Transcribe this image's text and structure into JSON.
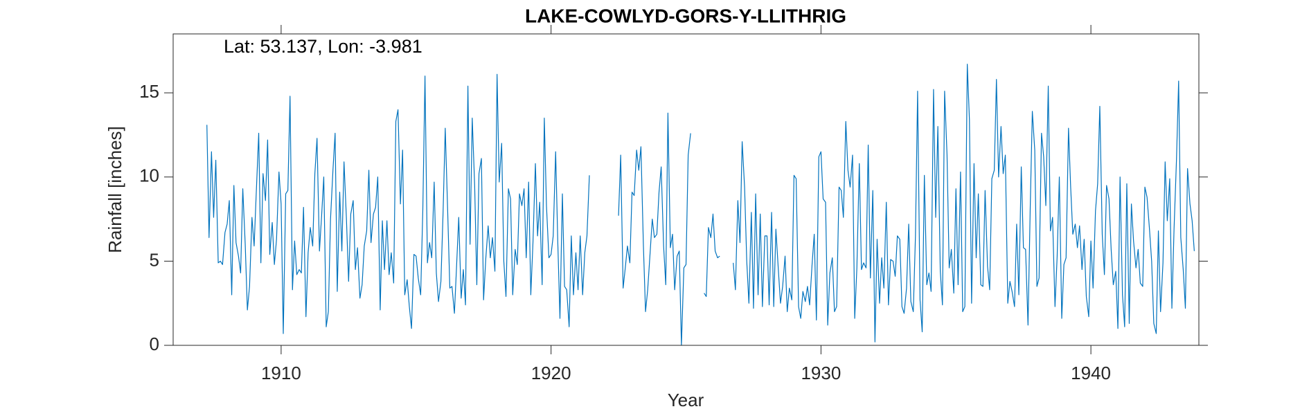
{
  "chart_data": {
    "type": "line",
    "title": "LAKE-COWLYD-GORS-Y-LLITHRIG",
    "annotation": "Lat: 53.137, Lon: -3.981",
    "xlabel": "Year",
    "ylabel": "Rainfall [inches]",
    "xlim": [
      1906,
      1944
    ],
    "ylim": [
      0,
      18.5
    ],
    "xticks": [
      1910,
      1920,
      1930,
      1940
    ],
    "yticks": [
      0,
      5,
      10,
      15
    ],
    "grid": false,
    "x": [
      1907.25,
      1907.33,
      1907.42,
      1907.5,
      1907.58,
      1907.67,
      1907.75,
      1907.83,
      1907.92,
      1908.0,
      1908.08,
      1908.17,
      1908.25,
      1908.33,
      1908.42,
      1908.5,
      1908.58,
      1908.67,
      1908.75,
      1908.83,
      1908.92,
      1909.0,
      1909.08,
      1909.17,
      1909.25,
      1909.33,
      1909.42,
      1909.5,
      1909.58,
      1909.67,
      1909.75,
      1909.83,
      1909.92,
      1910.0,
      1910.08,
      1910.17,
      1910.25,
      1910.33,
      1910.42,
      1910.5,
      1910.58,
      1910.67,
      1910.75,
      1910.83,
      1910.92,
      1911.0,
      1911.08,
      1911.17,
      1911.25,
      1911.33,
      1911.42,
      1911.5,
      1911.58,
      1911.67,
      1911.75,
      1911.83,
      1911.92,
      1912.0,
      1912.08,
      1912.17,
      1912.25,
      1912.33,
      1912.42,
      1912.5,
      1912.58,
      1912.67,
      1912.75,
      1912.83,
      1912.92,
      1913.0,
      1913.08,
      1913.17,
      1913.25,
      1913.33,
      1913.42,
      1913.5,
      1913.58,
      1913.67,
      1913.75,
      1913.83,
      1913.92,
      1914.0,
      1914.08,
      1914.17,
      1914.25,
      1914.33,
      1914.42,
      1914.5,
      1914.58,
      1914.67,
      1914.75,
      1914.83,
      1914.92,
      1915.0,
      1915.08,
      1915.17,
      1915.25,
      1915.33,
      1915.42,
      1915.5,
      1915.58,
      1915.67,
      1915.75,
      1915.83,
      1915.92,
      1916.0,
      1916.08,
      1916.17,
      1916.25,
      1916.33,
      1916.42,
      1916.5,
      1916.58,
      1916.67,
      1916.75,
      1916.83,
      1916.92,
      1917.0,
      1917.08,
      1917.17,
      1917.25,
      1917.33,
      1917.42,
      1917.5,
      1917.58,
      1917.67,
      1917.75,
      1917.83,
      1917.92,
      1918.0,
      1918.08,
      1918.17,
      1918.25,
      1918.33,
      1918.42,
      1918.5,
      1918.58,
      1918.67,
      1918.75,
      1918.83,
      1918.92,
      1919.0,
      1919.08,
      1919.17,
      1919.25,
      1919.33,
      1919.42,
      1919.5,
      1919.58,
      1919.67,
      1919.75,
      1919.83,
      1919.92,
      1920.0,
      1920.08,
      1920.17,
      1920.25,
      1920.33,
      1920.42,
      1920.5,
      1920.58,
      1920.67,
      1920.75,
      1920.83,
      1920.92,
      1921.0,
      1921.08,
      1921.17,
      1921.25,
      1921.33,
      1921.42,
      1921.5,
      1921.58,
      1921.67,
      1921.75,
      1921.83,
      1921.92,
      1922.0,
      1922.08,
      1922.17,
      1922.25,
      1922.33,
      1922.42,
      1922.5,
      1922.58,
      1922.67,
      1922.75,
      1922.83,
      1922.92,
      1923.0,
      1923.08,
      1923.17,
      1923.25,
      1923.33,
      1923.42,
      1923.5,
      1923.58,
      1923.67,
      1923.75,
      1923.83,
      1923.92,
      1924.0,
      1924.08,
      1924.17,
      1924.25,
      1924.33,
      1924.42,
      1924.5,
      1924.58,
      1924.67,
      1924.75,
      1924.83,
      1924.92,
      1925.0,
      1925.08,
      1925.17,
      1925.25,
      1925.33,
      1925.42,
      1925.5,
      1925.58,
      1925.67,
      1925.75,
      1925.83,
      1925.92,
      1926.0,
      1926.08,
      1926.17,
      1926.25,
      1926.33,
      1926.42,
      1926.5,
      1926.58,
      1926.67,
      1926.75,
      1926.83,
      1926.92,
      1927.0,
      1927.08,
      1927.17,
      1927.25,
      1927.33,
      1927.42,
      1927.5,
      1927.58,
      1927.67,
      1927.75,
      1927.83,
      1927.92,
      1928.0,
      1928.08,
      1928.17,
      1928.25,
      1928.33,
      1928.42,
      1928.5,
      1928.58,
      1928.67,
      1928.75,
      1928.83,
      1928.92,
      1929.0,
      1929.08,
      1929.17,
      1929.25,
      1929.33,
      1929.42,
      1929.5,
      1929.58,
      1929.67,
      1929.75,
      1929.83,
      1929.92,
      1930.0,
      1930.08,
      1930.17,
      1930.25,
      1930.33,
      1930.42,
      1930.5,
      1930.58,
      1930.67,
      1930.75,
      1930.83,
      1930.92,
      1931.0,
      1931.08,
      1931.17,
      1931.25,
      1931.33,
      1931.42,
      1931.5,
      1931.58,
      1931.67,
      1931.75,
      1931.83,
      1931.92,
      1932.0,
      1932.08,
      1932.17,
      1932.25,
      1932.33,
      1932.42,
      1932.5,
      1932.58,
      1932.67,
      1932.75,
      1932.83,
      1932.92,
      1933.0,
      1933.08,
      1933.17,
      1933.25,
      1933.33,
      1933.42,
      1933.5,
      1933.58,
      1933.67,
      1933.75,
      1933.83,
      1933.92,
      1934.0,
      1934.08,
      1934.17,
      1934.25,
      1934.33,
      1934.42,
      1934.5,
      1934.58,
      1934.67,
      1934.75,
      1934.83,
      1934.92,
      1935.0,
      1935.08,
      1935.17,
      1935.25,
      1935.33,
      1935.42,
      1935.5,
      1935.58,
      1935.67,
      1935.75,
      1935.83,
      1935.92,
      1936.0,
      1936.08,
      1936.17,
      1936.25,
      1936.33,
      1936.42,
      1936.5,
      1936.58,
      1936.67,
      1936.75,
      1936.83,
      1936.92,
      1937.0,
      1937.08,
      1937.17,
      1937.25,
      1937.33,
      1937.42,
      1937.5,
      1937.58,
      1937.67,
      1937.75,
      1937.83,
      1937.92,
      1938.0,
      1938.08,
      1938.17,
      1938.25,
      1938.33,
      1938.42,
      1938.5,
      1938.58,
      1938.67,
      1938.75,
      1938.83,
      1938.92,
      1939.0,
      1939.08,
      1939.17,
      1939.25,
      1939.33,
      1939.42,
      1939.5,
      1939.58,
      1939.67,
      1939.75,
      1939.83,
      1939.92,
      1940.0,
      1940.08,
      1940.17,
      1940.25,
      1940.33,
      1940.42,
      1940.5,
      1940.58,
      1940.67,
      1940.75,
      1940.83,
      1940.92,
      1941.0,
      1941.08,
      1941.17,
      1941.25,
      1941.33,
      1941.42,
      1941.5,
      1941.58,
      1941.67,
      1941.75,
      1941.83,
      1941.92,
      1942.0,
      1942.08,
      1942.17,
      1942.25,
      1942.33,
      1942.42,
      1942.5,
      1942.58,
      1942.67,
      1942.75,
      1942.83,
      1942.92,
      1943.0,
      1943.08,
      1943.17,
      1943.25,
      1943.33,
      1943.42,
      1943.5,
      1943.58,
      1943.67,
      1943.75,
      1943.83
    ],
    "series": [
      {
        "color": "#0072bd",
        "values": [
          13.1,
          6.4,
          11.5,
          7.6,
          11.0,
          4.9,
          5.0,
          4.8,
          6.7,
          7.2,
          8.6,
          3.0,
          9.5,
          6.1,
          5.3,
          4.3,
          9.3,
          6.0,
          2.1,
          3.5,
          7.6,
          5.9,
          9.1,
          12.6,
          4.9,
          10.2,
          8.6,
          12.2,
          5.4,
          7.3,
          4.8,
          6.3,
          10.3,
          8.4,
          0.7,
          9.0,
          9.2,
          14.8,
          3.3,
          6.2,
          4.2,
          4.5,
          4.3,
          8.2,
          1.7,
          5.5,
          7.0,
          5.9,
          10.2,
          12.3,
          5.6,
          7.7,
          10.0,
          1.1,
          2.0,
          7.5,
          10.4,
          12.6,
          3.2,
          9.1,
          5.6,
          10.9,
          7.5,
          3.8,
          7.8,
          8.6,
          4.5,
          5.8,
          2.8,
          3.6,
          5.9,
          6.8,
          10.4,
          6.1,
          7.8,
          8.2,
          10.0,
          2.1,
          7.4,
          4.5,
          7.4,
          4.2,
          5.5,
          3.7,
          13.3,
          14.0,
          8.4,
          11.6,
          3.0,
          3.9,
          2.3,
          1.0,
          5.4,
          5.3,
          4.0,
          3.0,
          8.1,
          16.0,
          4.9,
          6.1,
          5.2,
          9.7,
          4.3,
          2.6,
          3.8,
          7.9,
          12.9,
          8.0,
          3.4,
          3.5,
          1.9,
          4.7,
          7.6,
          2.8,
          4.5,
          2.4,
          15.4,
          6.0,
          13.5,
          9.5,
          3.6,
          10.2,
          11.1,
          2.7,
          5.1,
          7.1,
          5.2,
          6.4,
          4.4,
          16.1,
          9.7,
          12.0,
          5.0,
          2.9,
          9.3,
          8.7,
          3.0,
          5.7,
          4.8,
          9.0,
          8.3,
          9.3,
          5.2,
          9.7,
          3.0,
          6.1,
          10.8,
          6.5,
          8.5,
          3.6,
          13.5,
          8.3,
          5.2,
          5.4,
          6.5,
          11.5,
          6.1,
          1.6,
          9.0,
          3.5,
          3.3,
          1.1,
          6.5,
          3.0,
          5.5,
          3.3,
          6.5,
          3.0,
          5.5,
          6.5,
          10.1,
          null,
          null,
          null,
          null,
          null,
          null,
          null,
          null,
          null,
          null,
          null,
          null,
          7.7,
          11.3,
          3.4,
          4.6,
          5.9,
          4.9,
          9.1,
          8.9,
          11.6,
          10.4,
          11.8,
          6.0,
          2.0,
          3.3,
          5.5,
          7.5,
          6.4,
          6.6,
          9.1,
          10.6,
          5.9,
          3.6,
          13.8,
          5.8,
          6.6,
          3.3,
          5.3,
          5.6,
          0.0,
          4.6,
          4.8,
          11.3,
          12.6,
          null,
          null,
          null,
          null,
          null,
          3.1,
          2.9,
          7.0,
          6.4,
          7.8,
          5.6,
          5.2,
          5.3,
          null,
          null,
          null,
          null,
          null,
          4.9,
          3.3,
          8.6,
          6.1,
          12.1,
          9.4,
          5.0,
          2.5,
          7.9,
          2.2,
          9.0,
          3.0,
          7.8,
          2.3,
          6.5,
          6.5,
          2.4,
          7.9,
          2.3,
          6.9,
          4.5,
          2.5,
          3.5,
          5.3,
          2.0,
          3.4,
          2.7,
          10.1,
          9.9,
          2.3,
          1.6,
          3.2,
          2.6,
          3.5,
          2.4,
          4.8,
          6.6,
          1.5,
          11.2,
          11.5,
          8.7,
          8.5,
          1.2,
          4.3,
          5.2,
          2.0,
          2.3,
          9.4,
          9.2,
          7.6,
          13.3,
          10.4,
          9.4,
          11.3,
          1.6,
          4.6,
          10.8,
          4.5,
          4.9,
          4.6,
          11.9,
          4.0,
          9.2,
          0.2,
          6.3,
          2.5,
          5.2,
          3.4,
          8.5,
          2.4,
          5.1,
          5.0,
          4.1,
          6.5,
          6.3,
          2.3,
          1.9,
          3.4,
          7.2,
          2.6,
          2.0,
          6.5,
          15.1,
          2.7,
          0.8,
          10.1,
          3.6,
          4.3,
          3.2,
          15.2,
          7.6,
          13.0,
          4.4,
          2.4,
          15.1,
          11.3,
          4.6,
          5.7,
          3.1,
          9.3,
          3.6,
          10.3,
          2.0,
          2.3,
          16.7,
          13.4,
          2.5,
          10.8,
          5.2,
          9.0,
          3.6,
          3.5,
          9.2,
          4.7,
          3.3,
          9.9,
          10.4,
          15.8,
          10.0,
          13.0,
          10.2,
          11.3,
          2.5,
          3.8,
          3.2,
          2.3,
          7.2,
          3.0,
          10.6,
          5.8,
          5.7,
          1.2,
          8.0,
          13.9,
          11.6,
          3.5,
          4.0,
          12.6,
          11.2,
          8.3,
          15.4,
          6.8,
          7.6,
          2.3,
          5.3,
          10.0,
          1.6,
          4.8,
          5.2,
          12.9,
          9.4,
          6.6,
          7.2,
          5.8,
          7.1,
          4.5,
          6.3,
          2.9,
          1.7,
          6.2,
          3.4,
          8.0,
          9.6,
          14.2,
          6.6,
          4.2,
          9.5,
          8.7,
          5.7,
          3.6,
          4.4,
          1.0,
          10.0,
          3.0,
          1.1,
          9.6,
          1.3,
          8.4,
          6.2,
          4.6,
          5.7,
          3.7,
          3.5,
          9.4,
          8.8,
          6.9,
          5.0,
          1.3,
          0.7,
          6.8,
          2.0,
          4.9,
          10.9,
          7.4,
          9.9,
          2.2,
          6.9,
          11.0,
          15.7,
          6.4,
          4.5,
          2.2,
          10.5,
          8.4,
          7.4,
          5.6
        ]
      }
    ]
  }
}
